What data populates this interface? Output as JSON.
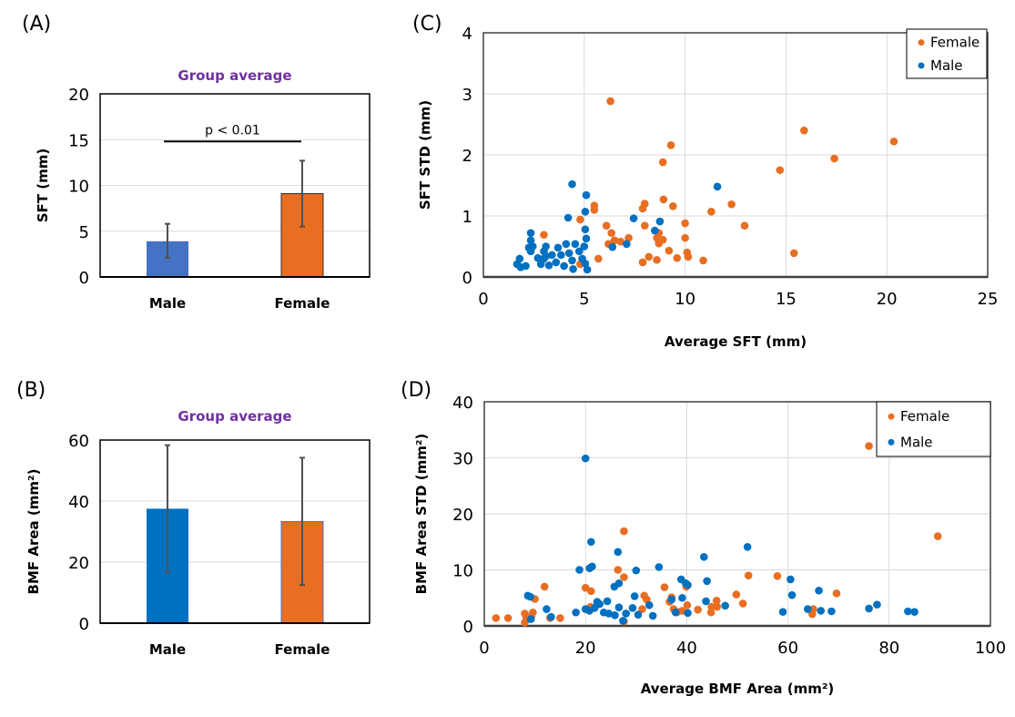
{
  "panel_labels": {
    "a": "(A)",
    "b": "(B)",
    "c": "(C)",
    "d": "(D)"
  },
  "colors": {
    "male_a": "#4472C4",
    "male": "#0070C0",
    "female": "#E86E22",
    "subtitle": "#7030A0",
    "error_bar": "#505050"
  },
  "chart_data": [
    {
      "id": "A",
      "type": "bar",
      "title": "Group average",
      "categories": [
        "Male",
        "Female"
      ],
      "values": [
        3.9,
        9.1
      ],
      "error_low": [
        2.1,
        5.5
      ],
      "error_high": [
        5.8,
        12.7
      ],
      "ylabel": "SFT  (mm)",
      "xlabel": "",
      "ylim": [
        0,
        20
      ],
      "yticks": [
        0,
        5,
        10,
        15,
        20
      ],
      "grid": true,
      "annotation": {
        "text": "p < 0.01",
        "y": 14.8,
        "from": "Male",
        "to": "Female"
      }
    },
    {
      "id": "B",
      "type": "bar",
      "title": "Group average",
      "categories": [
        "Male",
        "Female"
      ],
      "values": [
        37.5,
        33.3
      ],
      "error_low": [
        16.7,
        12.5
      ],
      "error_high": [
        58.3,
        54.2
      ],
      "ylabel": "BMF Area  (mm²)",
      "xlabel": "",
      "ylim": [
        0,
        60
      ],
      "yticks": [
        0,
        20,
        40,
        60
      ],
      "grid": true
    },
    {
      "id": "C",
      "type": "scatter",
      "title": "",
      "xlabel": "Average SFT (mm)",
      "ylabel": "SFT STD (mm)",
      "xlim": [
        0,
        25
      ],
      "ylim": [
        0,
        4
      ],
      "xticks": [
        0,
        5,
        10,
        15,
        20,
        25
      ],
      "yticks": [
        0,
        1,
        2,
        3,
        4
      ],
      "grid": true,
      "legend": "top-right",
      "series": [
        {
          "name": "Female",
          "points": [
            [
              6.3,
              2.88
            ],
            [
              9.3,
              2.16
            ],
            [
              8.9,
              1.88
            ],
            [
              15.9,
              2.4
            ],
            [
              20.35,
              2.22
            ],
            [
              17.4,
              1.94
            ],
            [
              14.7,
              1.75
            ],
            [
              8.93,
              1.27
            ],
            [
              8.0,
              1.2
            ],
            [
              7.9,
              1.12
            ],
            [
              9.4,
              1.16
            ],
            [
              12.3,
              1.19
            ],
            [
              11.3,
              1.07
            ],
            [
              5.5,
              1.17
            ],
            [
              5.5,
              1.1
            ],
            [
              10.0,
              0.88
            ],
            [
              4.8,
              0.94
            ],
            [
              12.95,
              0.84
            ],
            [
              6.1,
              0.84
            ],
            [
              8.0,
              0.84
            ],
            [
              6.35,
              0.72
            ],
            [
              3.0,
              0.69
            ],
            [
              6.5,
              0.6
            ],
            [
              6.8,
              0.58
            ],
            [
              7.2,
              0.64
            ],
            [
              6.2,
              0.54
            ],
            [
              8.7,
              0.72
            ],
            [
              8.6,
              0.64
            ],
            [
              8.9,
              0.61
            ],
            [
              8.7,
              0.55
            ],
            [
              10.0,
              0.64
            ],
            [
              9.2,
              0.43
            ],
            [
              8.2,
              0.33
            ],
            [
              7.9,
              0.24
            ],
            [
              8.6,
              0.28
            ],
            [
              9.6,
              0.31
            ],
            [
              10.1,
              0.4
            ],
            [
              10.15,
              0.33
            ],
            [
              10.9,
              0.27
            ],
            [
              15.4,
              0.39
            ],
            [
              5.7,
              0.3
            ],
            [
              4.8,
              0.21
            ]
          ]
        },
        {
          "name": "Male",
          "points": [
            [
              4.4,
              1.52
            ],
            [
              5.1,
              1.34
            ],
            [
              5.05,
              1.07
            ],
            [
              4.2,
              0.97
            ],
            [
              5.05,
              0.78
            ],
            [
              5.1,
              0.63
            ],
            [
              11.6,
              1.48
            ],
            [
              7.45,
              0.96
            ],
            [
              8.75,
              0.91
            ],
            [
              8.5,
              0.76
            ],
            [
              6.4,
              0.49
            ],
            [
              7.1,
              0.54
            ],
            [
              2.35,
              0.72
            ],
            [
              2.35,
              0.6
            ],
            [
              2.25,
              0.48
            ],
            [
              2.35,
              0.42
            ],
            [
              1.8,
              0.3
            ],
            [
              1.67,
              0.21
            ],
            [
              1.85,
              0.16
            ],
            [
              2.1,
              0.18
            ],
            [
              2.45,
              0.5
            ],
            [
              3.0,
              0.42
            ],
            [
              3.1,
              0.5
            ],
            [
              3.0,
              0.3
            ],
            [
              2.85,
              0.21
            ],
            [
              3.25,
              0.19
            ],
            [
              3.4,
              0.36
            ],
            [
              3.6,
              0.24
            ],
            [
              3.7,
              0.48
            ],
            [
              3.85,
              0.36
            ],
            [
              4.0,
              0.18
            ],
            [
              4.1,
              0.54
            ],
            [
              4.25,
              0.39
            ],
            [
              4.4,
              0.27
            ],
            [
              4.55,
              0.54
            ],
            [
              4.75,
              0.42
            ],
            [
              4.9,
              0.3
            ],
            [
              5.05,
              0.22
            ],
            [
              5.0,
              0.5
            ],
            [
              4.45,
              0.13
            ],
            [
              5.15,
              0.12
            ],
            [
              3.1,
              0.34
            ],
            [
              2.7,
              0.31
            ]
          ]
        }
      ]
    },
    {
      "id": "D",
      "type": "scatter",
      "title": "",
      "xlabel": "Average BMF Area (mm²)",
      "ylabel": "BMF Area STD (mm²)",
      "xlim": [
        0,
        100
      ],
      "ylim": [
        0,
        40
      ],
      "xticks": [
        0,
        20,
        40,
        60,
        80,
        100
      ],
      "yticks": [
        0,
        10,
        20,
        30,
        40
      ],
      "grid": true,
      "legend": "top-right",
      "series": [
        {
          "name": "Female",
          "points": [
            [
              76.0,
              32.1
            ],
            [
              89.6,
              16.0
            ],
            [
              27.6,
              16.9
            ],
            [
              26.4,
              10.0
            ],
            [
              27.6,
              8.7
            ],
            [
              52.2,
              9.0
            ],
            [
              57.9,
              8.9
            ],
            [
              69.6,
              5.8
            ],
            [
              11.9,
              7.0
            ],
            [
              20.0,
              6.8
            ],
            [
              21.1,
              6.2
            ],
            [
              35.6,
              6.9
            ],
            [
              39.9,
              7.0
            ],
            [
              31.6,
              5.4
            ],
            [
              32.1,
              4.7
            ],
            [
              10.0,
              4.8
            ],
            [
              37.0,
              5.1
            ],
            [
              36.6,
              4.3
            ],
            [
              37.4,
              3.0
            ],
            [
              31.2,
              3.0
            ],
            [
              40.1,
              3.7
            ],
            [
              42.2,
              2.9
            ],
            [
              44.9,
              3.4
            ],
            [
              45.9,
              4.5
            ],
            [
              49.8,
              5.6
            ],
            [
              51.1,
              4.0
            ],
            [
              38.2,
              2.5
            ],
            [
              39.1,
              2.7
            ],
            [
              27.6,
              0.8
            ],
            [
              44.8,
              2.4
            ],
            [
              2.3,
              1.4
            ],
            [
              4.7,
              1.4
            ],
            [
              8.0,
              2.2
            ],
            [
              8.3,
              1.6
            ],
            [
              9.3,
              1.6
            ],
            [
              8.0,
              0.6
            ],
            [
              9.6,
              2.4
            ],
            [
              13.0,
              1.4
            ],
            [
              15.0,
              1.4
            ],
            [
              21.0,
              3.4
            ],
            [
              64.8,
              2.1
            ],
            [
              65.0,
              3.0
            ],
            [
              46.0,
              3.4
            ]
          ]
        },
        {
          "name": "Male",
          "points": [
            [
              20.0,
              29.9
            ],
            [
              21.1,
              15.0
            ],
            [
              26.4,
              13.2
            ],
            [
              18.8,
              10.0
            ],
            [
              20.8,
              10.3
            ],
            [
              21.3,
              10.6
            ],
            [
              30.0,
              9.9
            ],
            [
              34.5,
              10.5
            ],
            [
              43.4,
              12.3
            ],
            [
              52.0,
              14.1
            ],
            [
              25.7,
              7.0
            ],
            [
              26.6,
              7.6
            ],
            [
              38.9,
              8.3
            ],
            [
              39.8,
              7.6
            ],
            [
              40.2,
              7.3
            ],
            [
              44.0,
              8.0
            ],
            [
              29.7,
              5.3
            ],
            [
              37.0,
              4.7
            ],
            [
              39.1,
              5.0
            ],
            [
              43.8,
              4.4
            ],
            [
              47.6,
              3.6
            ],
            [
              8.6,
              5.4
            ],
            [
              9.1,
              5.2
            ],
            [
              12.3,
              3.0
            ],
            [
              13.2,
              1.6
            ],
            [
              9.2,
              1.2
            ],
            [
              18.1,
              2.4
            ],
            [
              20.0,
              3.0
            ],
            [
              20.8,
              2.7
            ],
            [
              21.8,
              3.2
            ],
            [
              22.3,
              4.3
            ],
            [
              22.8,
              3.9
            ],
            [
              23.6,
              2.4
            ],
            [
              24.3,
              4.4
            ],
            [
              24.6,
              2.2
            ],
            [
              25.8,
              1.9
            ],
            [
              26.6,
              3.3
            ],
            [
              27.4,
              0.9
            ],
            [
              28.0,
              2.2
            ],
            [
              29.3,
              3.2
            ],
            [
              30.4,
              2.0
            ],
            [
              32.6,
              3.7
            ],
            [
              33.3,
              1.8
            ],
            [
              37.8,
              2.4
            ],
            [
              40.2,
              2.3
            ],
            [
              60.5,
              8.3
            ],
            [
              60.8,
              5.5
            ],
            [
              66.1,
              6.3
            ],
            [
              59.0,
              2.5
            ],
            [
              63.9,
              3.0
            ],
            [
              66.5,
              2.7
            ],
            [
              68.6,
              2.6
            ],
            [
              76.0,
              3.1
            ],
            [
              77.6,
              3.8
            ],
            [
              83.7,
              2.6
            ],
            [
              85.0,
              2.5
            ]
          ]
        }
      ]
    }
  ]
}
